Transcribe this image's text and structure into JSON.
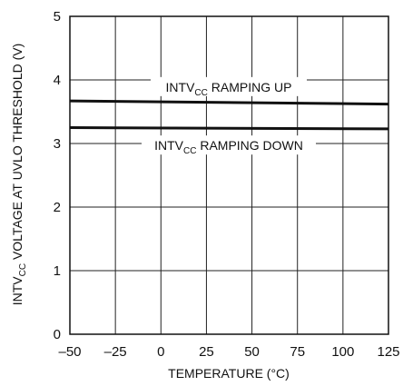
{
  "chart_data": {
    "type": "line",
    "title": "",
    "xlabel": "TEMPERATURE (°C)",
    "ylabel_parts": [
      "INTV",
      "CC",
      " VOLTAGE AT UVLO THRESHOLD (V)"
    ],
    "xlim": [
      -50,
      125
    ],
    "ylim": [
      0,
      5
    ],
    "x_ticks": [
      -50,
      -25,
      0,
      25,
      50,
      75,
      100,
      125
    ],
    "x_tick_labels": [
      "–50",
      "–25",
      "0",
      "25",
      "50",
      "75",
      "100",
      "125"
    ],
    "y_ticks": [
      0,
      1,
      2,
      3,
      4,
      5
    ],
    "y_tick_labels": [
      "0",
      "1",
      "2",
      "3",
      "4",
      "5"
    ],
    "grid": true,
    "series": [
      {
        "name_parts": [
          "INTV",
          "CC",
          " RAMPING UP"
        ],
        "label_position": "above",
        "x": [
          -50,
          125
        ],
        "y": [
          3.67,
          3.62
        ]
      },
      {
        "name_parts": [
          "INTV",
          "CC",
          " RAMPING DOWN"
        ],
        "label_position": "below",
        "x": [
          -50,
          125
        ],
        "y": [
          3.25,
          3.23
        ]
      }
    ]
  }
}
